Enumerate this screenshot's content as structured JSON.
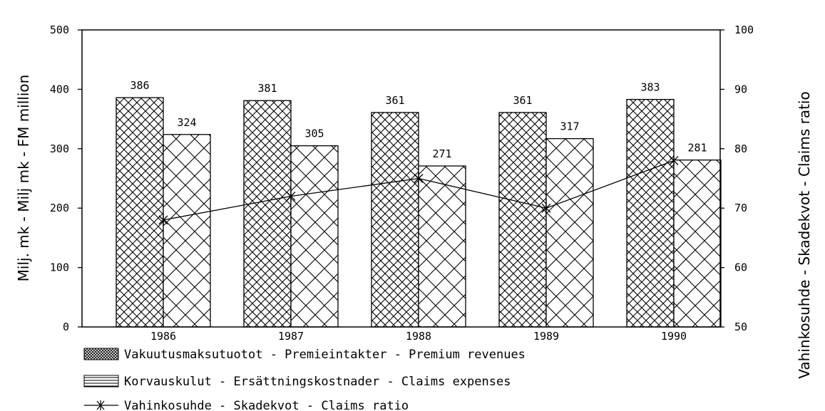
{
  "chart_data": {
    "type": "bar",
    "categories": [
      "1986",
      "1987",
      "1988",
      "1989",
      "1990"
    ],
    "series": [
      {
        "name": "Vakuutusmaksutuotot - Premieintakter - Premium revenues",
        "type": "bar",
        "axis": "left",
        "values": [
          386,
          381,
          361,
          361,
          383
        ]
      },
      {
        "name": "Korvauskulut - Ersättningskostnader - Claims expenses",
        "type": "bar",
        "axis": "left",
        "values": [
          324,
          305,
          271,
          317,
          281
        ]
      },
      {
        "name": "Vahinkosuhde - Skadekvot - Claims ratio",
        "type": "line",
        "axis": "right",
        "values": [
          68,
          72,
          75,
          70,
          78
        ]
      }
    ],
    "ylabel": "Milj. mk - Milj mk - FM million",
    "y2label": "Vahinkosuhde - Skadekvot - Claims ratio",
    "ylim": [
      0,
      500
    ],
    "y2lim": [
      50,
      100
    ],
    "yticks": [
      0,
      100,
      200,
      300,
      400,
      500
    ],
    "y2ticks": [
      50,
      60,
      70,
      80,
      90,
      100
    ],
    "legend": "bottom",
    "grid": false
  }
}
